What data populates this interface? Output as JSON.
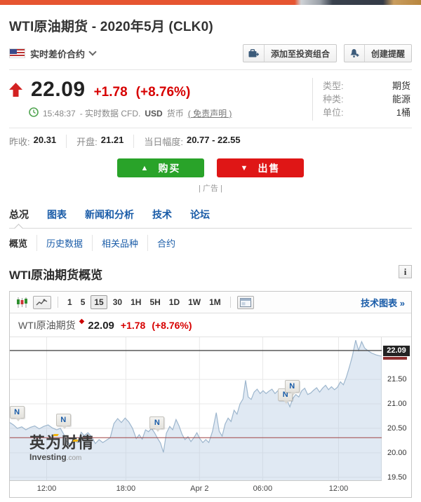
{
  "page_title": "WTI原油期货 - 2020年5月 (CLK0)",
  "selector": {
    "label": "实时差价合约",
    "flag": "us-flag"
  },
  "actions": {
    "add_portfolio": "添加至投资组合",
    "create_alert": "创建提醒"
  },
  "quote": {
    "price": "22.09",
    "change": "+1.78",
    "change_pct": "(+8.76%)",
    "time": "15:48:37",
    "note": "- 实时数据 CFD.",
    "currency": "USD",
    "currency_word": "货币",
    "disclaimer": "( 免责声明 )"
  },
  "meta": {
    "rows": [
      {
        "label": "类型:",
        "value": "期货"
      },
      {
        "label": "种类:",
        "value": "能源"
      },
      {
        "label": "单位:",
        "value": "1桶"
      }
    ]
  },
  "stats": [
    {
      "label": "昨收:",
      "value": "20.31"
    },
    {
      "label": "开盘:",
      "value": "21.21"
    },
    {
      "label": "当日幅度:",
      "value": "20.77 - 22.55"
    }
  ],
  "trade": {
    "buy": "购买",
    "sell": "出售",
    "buy_arrow": "▲",
    "sell_arrow": "▼",
    "ad": "| 广告 |"
  },
  "nav": {
    "main": [
      "总况",
      "图表",
      "新闻和分析",
      "技术",
      "论坛"
    ],
    "main_active": "总况",
    "sub": [
      "概览",
      "历史数据",
      "相关品种",
      "合约"
    ],
    "sub_active": "概览"
  },
  "section_title": "WTI原油期货概览",
  "info_icon": "i",
  "toolbar": {
    "timeframes": [
      "1",
      "5",
      "15",
      "30",
      "1H",
      "5H",
      "1D",
      "1W",
      "1M"
    ],
    "active": "15",
    "tech_link": "技术图表 »"
  },
  "chart_header": {
    "name": "WTI原油期货",
    "star": "◆",
    "price": "22.09",
    "change": "+1.78",
    "pct": "(+8.76%)"
  },
  "watermark": {
    "cn": "英为财情",
    "en_bold": "Investing",
    "en_gray": ".com"
  },
  "chart_data": {
    "type": "area",
    "series_name": "WTI原油期货",
    "ylim": [
      19.44,
      22.36
    ],
    "yticks": [
      "21.50",
      "21.00",
      "20.50",
      "20.00",
      "19.50"
    ],
    "xticks": [
      {
        "pos": 0.099,
        "label": "12:00"
      },
      {
        "pos": 0.312,
        "label": "18:00"
      },
      {
        "pos": 0.51,
        "label": "Apr 2"
      },
      {
        "pos": 0.68,
        "label": "06:00"
      },
      {
        "pos": 0.884,
        "label": "12:00"
      }
    ],
    "current_price": 22.09,
    "current_label": "22.09",
    "prev_close": 20.31,
    "line_color": "#9db6cd",
    "fill_color": "rgba(187,207,228,0.45)",
    "prev_close_color": "#a04545",
    "current_line_color": "#4a4a4a",
    "grid_color": "#e8e8e8",
    "news_markers": [
      {
        "pos": 0.018,
        "price": 20.62,
        "label": "N"
      },
      {
        "pos": 0.143,
        "price": 20.45,
        "label": "N"
      },
      {
        "pos": 0.395,
        "price": 20.4,
        "label": "N"
      },
      {
        "pos": 0.74,
        "price": 20.97,
        "label": "N"
      },
      {
        "pos": 0.758,
        "price": 21.14,
        "label": "N"
      }
    ],
    "points": [
      [
        0.0,
        20.62
      ],
      [
        0.01,
        20.57
      ],
      [
        0.02,
        20.5
      ],
      [
        0.032,
        20.53
      ],
      [
        0.043,
        20.47
      ],
      [
        0.055,
        20.52
      ],
      [
        0.067,
        20.55
      ],
      [
        0.079,
        20.49
      ],
      [
        0.091,
        20.54
      ],
      [
        0.103,
        20.57
      ],
      [
        0.114,
        20.51
      ],
      [
        0.126,
        20.47
      ],
      [
        0.136,
        20.5
      ],
      [
        0.145,
        20.38
      ],
      [
        0.152,
        20.24
      ],
      [
        0.162,
        20.18
      ],
      [
        0.172,
        20.26
      ],
      [
        0.182,
        20.21
      ],
      [
        0.192,
        20.42
      ],
      [
        0.2,
        20.35
      ],
      [
        0.21,
        20.41
      ],
      [
        0.22,
        20.33
      ],
      [
        0.23,
        20.19
      ],
      [
        0.24,
        20.27
      ],
      [
        0.25,
        20.21
      ],
      [
        0.26,
        20.26
      ],
      [
        0.27,
        20.31
      ],
      [
        0.28,
        20.6
      ],
      [
        0.29,
        20.7
      ],
      [
        0.3,
        20.62
      ],
      [
        0.31,
        20.71
      ],
      [
        0.32,
        20.63
      ],
      [
        0.33,
        20.5
      ],
      [
        0.34,
        20.29
      ],
      [
        0.348,
        20.37
      ],
      [
        0.356,
        20.28
      ],
      [
        0.365,
        20.47
      ],
      [
        0.373,
        20.43
      ],
      [
        0.381,
        20.5
      ],
      [
        0.389,
        20.41
      ],
      [
        0.397,
        20.3
      ],
      [
        0.405,
        20.2
      ],
      [
        0.413,
        20.01
      ],
      [
        0.421,
        20.4
      ],
      [
        0.43,
        20.54
      ],
      [
        0.438,
        20.47
      ],
      [
        0.447,
        20.68
      ],
      [
        0.455,
        20.55
      ],
      [
        0.463,
        20.38
      ],
      [
        0.471,
        20.27
      ],
      [
        0.479,
        20.33
      ],
      [
        0.487,
        20.23
      ],
      [
        0.495,
        20.31
      ],
      [
        0.503,
        20.41
      ],
      [
        0.511,
        20.29
      ],
      [
        0.519,
        20.21
      ],
      [
        0.527,
        20.27
      ],
      [
        0.535,
        20.21
      ],
      [
        0.545,
        20.44
      ],
      [
        0.555,
        20.82
      ],
      [
        0.563,
        20.44
      ],
      [
        0.571,
        20.34
      ],
      [
        0.579,
        20.59
      ],
      [
        0.587,
        20.71
      ],
      [
        0.595,
        20.64
      ],
      [
        0.603,
        20.87
      ],
      [
        0.611,
        20.79
      ],
      [
        0.619,
        21.0
      ],
      [
        0.627,
        21.1
      ],
      [
        0.634,
        21.48
      ],
      [
        0.641,
        21.14
      ],
      [
        0.649,
        21.09
      ],
      [
        0.657,
        21.24
      ],
      [
        0.665,
        21.3
      ],
      [
        0.673,
        21.21
      ],
      [
        0.681,
        21.27
      ],
      [
        0.689,
        21.21
      ],
      [
        0.697,
        21.26
      ],
      [
        0.705,
        21.3
      ],
      [
        0.713,
        21.21
      ],
      [
        0.721,
        21.27
      ],
      [
        0.729,
        21.19
      ],
      [
        0.737,
        21.13
      ],
      [
        0.745,
        21.08
      ],
      [
        0.753,
        20.94
      ],
      [
        0.761,
        21.11
      ],
      [
        0.769,
        21.19
      ],
      [
        0.777,
        21.14
      ],
      [
        0.785,
        21.27
      ],
      [
        0.793,
        21.32
      ],
      [
        0.801,
        21.19
      ],
      [
        0.809,
        21.22
      ],
      [
        0.817,
        21.28
      ],
      [
        0.825,
        21.33
      ],
      [
        0.833,
        21.24
      ],
      [
        0.841,
        21.32
      ],
      [
        0.849,
        21.38
      ],
      [
        0.857,
        21.29
      ],
      [
        0.865,
        21.35
      ],
      [
        0.873,
        21.29
      ],
      [
        0.881,
        21.34
      ],
      [
        0.889,
        21.45
      ],
      [
        0.897,
        21.39
      ],
      [
        0.905,
        21.55
      ],
      [
        0.913,
        21.75
      ],
      [
        0.921,
        21.97
      ],
      [
        0.93,
        22.3
      ],
      [
        0.938,
        22.09
      ],
      [
        0.946,
        22.27
      ],
      [
        0.954,
        22.14
      ],
      [
        0.962,
        22.09
      ],
      [
        0.972,
        22.04
      ],
      [
        0.985,
        22.0
      ],
      [
        1.0,
        21.97
      ]
    ]
  }
}
